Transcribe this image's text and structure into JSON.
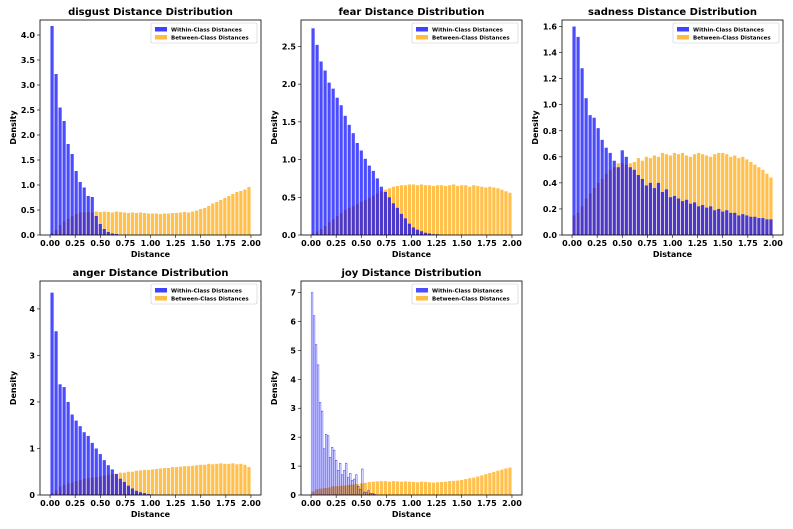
{
  "figure_title": "",
  "chart_data": [
    {
      "type": "histogram",
      "title": "disgust Distance Distribution",
      "xlabel": "Distance",
      "ylabel": "Density",
      "xlim": [
        -0.1,
        2.1
      ],
      "ylim": [
        0,
        4.3
      ],
      "xticks": [
        "0.00",
        "0.25",
        "0.50",
        "0.75",
        "1.00",
        "1.25",
        "1.50",
        "1.75",
        "2.00"
      ],
      "yticks": [
        "0.0",
        "0.5",
        "1.0",
        "1.5",
        "2.0",
        "2.5",
        "3.0",
        "3.5",
        "4.0"
      ],
      "legend_position": "top-right",
      "series": [
        {
          "name": "Within-Class Distances",
          "color": "#0000ff",
          "style": "filled",
          "bin_start": 0.0,
          "bin_width": 0.04,
          "values": [
            4.18,
            3.22,
            2.55,
            2.28,
            1.82,
            1.62,
            1.28,
            1.06,
            0.95,
            0.78,
            0.76,
            0.38,
            0.22,
            0.12,
            0.06,
            0.03,
            0.02
          ]
        },
        {
          "name": "Between-Class Distances",
          "color": "#ffa500",
          "style": "filled",
          "bin_start": 0.0,
          "bin_width": 0.04,
          "values": [
            0.04,
            0.1,
            0.2,
            0.27,
            0.32,
            0.38,
            0.42,
            0.45,
            0.45,
            0.46,
            0.45,
            0.47,
            0.46,
            0.47,
            0.46,
            0.45,
            0.47,
            0.46,
            0.45,
            0.44,
            0.45,
            0.44,
            0.45,
            0.44,
            0.43,
            0.43,
            0.43,
            0.42,
            0.43,
            0.43,
            0.44,
            0.44,
            0.45,
            0.46,
            0.45,
            0.47,
            0.49,
            0.52,
            0.54,
            0.58,
            0.63,
            0.66,
            0.7,
            0.74,
            0.78,
            0.82,
            0.86,
            0.88,
            0.91,
            0.96
          ]
        }
      ]
    },
    {
      "type": "histogram",
      "title": "fear Distance Distribution",
      "xlabel": "Distance",
      "ylabel": "Density",
      "xlim": [
        -0.1,
        2.1
      ],
      "ylim": [
        0,
        2.85
      ],
      "xticks": [
        "0.00",
        "0.25",
        "0.50",
        "0.75",
        "1.00",
        "1.25",
        "1.50",
        "1.75",
        "2.00"
      ],
      "yticks": [
        "0.0",
        "0.5",
        "1.0",
        "1.5",
        "2.0",
        "2.5"
      ],
      "legend_position": "top-right",
      "series": [
        {
          "name": "Within-Class Distances",
          "color": "#0000ff",
          "style": "filled",
          "bin_start": 0.0,
          "bin_width": 0.04,
          "values": [
            2.74,
            2.52,
            2.3,
            2.18,
            2.02,
            1.94,
            1.82,
            1.72,
            1.58,
            1.46,
            1.35,
            1.22,
            1.12,
            1.01,
            0.92,
            0.85,
            0.75,
            0.64,
            0.57,
            0.5,
            0.42,
            0.36,
            0.28,
            0.22,
            0.15,
            0.1,
            0.07,
            0.05,
            0.03,
            0.02,
            0.01,
            0.01
          ]
        },
        {
          "name": "Between-Class Distances",
          "color": "#ffa500",
          "style": "filled",
          "bin_start": 0.0,
          "bin_width": 0.04,
          "values": [
            0.02,
            0.05,
            0.08,
            0.12,
            0.17,
            0.21,
            0.25,
            0.29,
            0.33,
            0.36,
            0.38,
            0.41,
            0.44,
            0.46,
            0.49,
            0.52,
            0.55,
            0.58,
            0.6,
            0.62,
            0.64,
            0.65,
            0.66,
            0.66,
            0.67,
            0.67,
            0.66,
            0.67,
            0.66,
            0.66,
            0.65,
            0.66,
            0.66,
            0.65,
            0.66,
            0.67,
            0.65,
            0.66,
            0.66,
            0.64,
            0.66,
            0.65,
            0.64,
            0.63,
            0.64,
            0.63,
            0.62,
            0.6,
            0.58,
            0.56
          ]
        }
      ]
    },
    {
      "type": "histogram",
      "title": "sadness Distance Distribution",
      "xlabel": "Distance",
      "ylabel": "Density",
      "xlim": [
        -0.1,
        2.1
      ],
      "ylim": [
        0,
        1.65
      ],
      "xticks": [
        "0.00",
        "0.25",
        "0.50",
        "0.75",
        "1.00",
        "1.25",
        "1.50",
        "1.75",
        "2.00"
      ],
      "yticks": [
        "0.0",
        "0.2",
        "0.4",
        "0.6",
        "0.8",
        "1.0",
        "1.2",
        "1.4",
        "1.6"
      ],
      "legend_position": "top-right",
      "series": [
        {
          "name": "Within-Class Distances",
          "color": "#0000ff",
          "style": "filled",
          "bin_start": 0.0,
          "bin_width": 0.04,
          "values": [
            1.6,
            1.52,
            1.28,
            1.05,
            0.92,
            0.9,
            0.82,
            0.73,
            0.67,
            0.63,
            0.57,
            0.52,
            0.65,
            0.6,
            0.52,
            0.5,
            0.46,
            0.43,
            0.38,
            0.4,
            0.36,
            0.4,
            0.33,
            0.35,
            0.29,
            0.3,
            0.28,
            0.26,
            0.27,
            0.24,
            0.25,
            0.22,
            0.23,
            0.21,
            0.22,
            0.19,
            0.2,
            0.18,
            0.19,
            0.17,
            0.17,
            0.15,
            0.16,
            0.15,
            0.14,
            0.14,
            0.13,
            0.13,
            0.12,
            0.12
          ]
        },
        {
          "name": "Between-Class Distances",
          "color": "#ffa500",
          "style": "filled",
          "bin_start": 0.0,
          "bin_width": 0.04,
          "values": [
            0.15,
            0.17,
            0.22,
            0.28,
            0.32,
            0.36,
            0.4,
            0.43,
            0.47,
            0.5,
            0.52,
            0.55,
            0.55,
            0.54,
            0.55,
            0.56,
            0.59,
            0.57,
            0.6,
            0.59,
            0.61,
            0.6,
            0.63,
            0.62,
            0.61,
            0.63,
            0.62,
            0.63,
            0.61,
            0.6,
            0.62,
            0.63,
            0.62,
            0.61,
            0.6,
            0.62,
            0.63,
            0.63,
            0.62,
            0.6,
            0.61,
            0.59,
            0.6,
            0.58,
            0.56,
            0.54,
            0.52,
            0.5,
            0.47,
            0.44
          ]
        }
      ]
    },
    {
      "type": "histogram",
      "title": "anger Distance Distribution",
      "xlabel": "Distance",
      "ylabel": "Density",
      "xlim": [
        -0.1,
        2.1
      ],
      "ylim": [
        0,
        4.6
      ],
      "xticks": [
        "0.00",
        "0.25",
        "0.50",
        "0.75",
        "1.00",
        "1.25",
        "1.50",
        "1.75",
        "2.00"
      ],
      "yticks": [
        "0",
        "1",
        "2",
        "3",
        "4"
      ],
      "legend_position": "top-right",
      "series": [
        {
          "name": "Within-Class Distances",
          "color": "#0000ff",
          "style": "filled",
          "bin_start": 0.0,
          "bin_width": 0.04,
          "values": [
            4.35,
            3.52,
            2.38,
            2.32,
            2.0,
            1.73,
            1.6,
            1.48,
            1.35,
            1.27,
            1.12,
            1.0,
            0.88,
            0.75,
            0.64,
            0.55,
            0.45,
            0.35,
            0.28,
            0.2,
            0.14,
            0.09,
            0.06,
            0.04,
            0.02,
            0.01
          ]
        },
        {
          "name": "Between-Class Distances",
          "color": "#ffa500",
          "style": "filled",
          "bin_start": 0.0,
          "bin_width": 0.04,
          "values": [
            0.04,
            0.1,
            0.18,
            0.22,
            0.25,
            0.27,
            0.3,
            0.32,
            0.35,
            0.36,
            0.38,
            0.38,
            0.4,
            0.42,
            0.43,
            0.45,
            0.46,
            0.48,
            0.48,
            0.5,
            0.5,
            0.52,
            0.53,
            0.54,
            0.54,
            0.55,
            0.56,
            0.57,
            0.58,
            0.58,
            0.6,
            0.6,
            0.61,
            0.62,
            0.62,
            0.63,
            0.64,
            0.65,
            0.65,
            0.67,
            0.66,
            0.67,
            0.68,
            0.67,
            0.67,
            0.68,
            0.66,
            0.67,
            0.65,
            0.6
          ]
        }
      ]
    },
    {
      "type": "histogram",
      "title": "joy Distance Distribution",
      "xlabel": "Distance",
      "ylabel": "Density",
      "xlim": [
        -0.1,
        2.1
      ],
      "ylim": [
        0,
        7.4
      ],
      "xticks": [
        "0.00",
        "0.25",
        "0.50",
        "0.75",
        "1.00",
        "1.25",
        "1.50",
        "1.75",
        "2.00"
      ],
      "yticks": [
        "0",
        "1",
        "2",
        "3",
        "4",
        "5",
        "6",
        "7"
      ],
      "legend_position": "top-right",
      "series": [
        {
          "name": "Within-Class Distances",
          "color": "#0000ff",
          "style": "outline",
          "bin_start": 0.0,
          "bin_width": 0.02,
          "values": [
            7.0,
            6.2,
            5.2,
            4.5,
            3.2,
            2.9,
            1.6,
            2.1,
            2.05,
            1.3,
            1.65,
            1.55,
            1.2,
            0.85,
            1.1,
            0.7,
            0.85,
            1.1,
            0.6,
            0.75,
            0.5,
            0.55,
            0.7,
            0.3,
            0.2,
            0.9,
            0.1,
            0.08,
            0.15,
            0.05,
            0.05,
            0.03
          ]
        },
        {
          "name": "Between-Class Distances",
          "color": "#ffa500",
          "style": "filled",
          "bin_start": 0.0,
          "bin_width": 0.04,
          "values": [
            0.12,
            0.2,
            0.22,
            0.24,
            0.26,
            0.3,
            0.3,
            0.32,
            0.33,
            0.35,
            0.36,
            0.38,
            0.4,
            0.42,
            0.45,
            0.46,
            0.47,
            0.48,
            0.48,
            0.46,
            0.48,
            0.47,
            0.46,
            0.47,
            0.46,
            0.45,
            0.44,
            0.46,
            0.45,
            0.44,
            0.43,
            0.44,
            0.45,
            0.46,
            0.48,
            0.49,
            0.5,
            0.52,
            0.55,
            0.58,
            0.6,
            0.64,
            0.68,
            0.72,
            0.76,
            0.8,
            0.84,
            0.88,
            0.92,
            0.95
          ]
        }
      ]
    }
  ]
}
